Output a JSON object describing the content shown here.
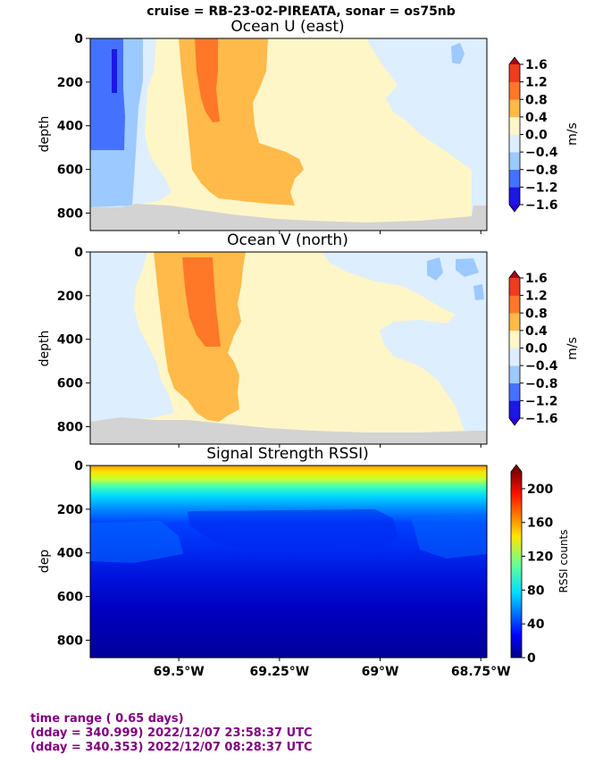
{
  "suptitle": "cruise = RB-23-02-PIREATA,  sonar = os75nb",
  "chart_data": [
    {
      "type": "heatmap",
      "title": "Ocean U (east)",
      "ylabel": "depth",
      "yticks": [
        "0",
        "200",
        "400",
        "600",
        "800"
      ],
      "ylim": [
        880,
        0
      ],
      "colorbar": {
        "label": "m/s",
        "ticks": [
          "1.6",
          "1.2",
          "0.8",
          "0.4",
          "0.0",
          "−0.4",
          "−0.8",
          "−1.2",
          "−1.6"
        ],
        "range": [
          -1.6,
          1.6
        ]
      }
    },
    {
      "type": "heatmap",
      "title": "Ocean V (north)",
      "ylabel": "depth",
      "yticks": [
        "0",
        "200",
        "400",
        "600",
        "800"
      ],
      "ylim": [
        880,
        0
      ],
      "colorbar": {
        "label": "m/s",
        "ticks": [
          "1.6",
          "1.2",
          "0.8",
          "0.4",
          "0.0",
          "−0.4",
          "−0.8",
          "−1.2",
          "−1.6"
        ],
        "range": [
          -1.6,
          1.6
        ]
      }
    },
    {
      "type": "heatmap",
      "title": "Signal Strength RSSI)",
      "ylabel": "dep",
      "yticks": [
        "0",
        "200",
        "400",
        "600",
        "800"
      ],
      "ylim": [
        880,
        0
      ],
      "xticks": [
        "69.5°W",
        "69.25°W",
        "69°W",
        "68.75°W"
      ],
      "colorbar": {
        "label": "RSSI counts",
        "ticks": [
          "200",
          "160",
          "120",
          "80",
          "40",
          "0"
        ],
        "range": [
          0,
          220
        ]
      }
    }
  ],
  "footer": {
    "line1": "time range ( 0.65 days)",
    "line2": "(dday = 340.999) 2022/12/07 23:58:37 UTC",
    "line3": "(dday = 340.353) 2022/12/07 08:28:37 UTC"
  },
  "colors": {
    "footer_text": "#800080",
    "no_data": "#d3d3d3"
  }
}
